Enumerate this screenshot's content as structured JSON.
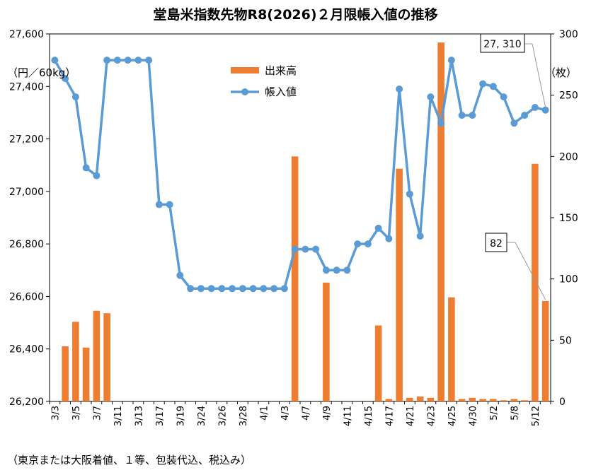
{
  "chart_data": {
    "type": "bar+line",
    "title": "堂島米指数先物R8(2026)２月限帳入値の推移",
    "left_unit": "（円／60kg）",
    "right_unit": "（枚）",
    "footnote": "（東京または大阪着値、１等、包装代込、税込み）",
    "y_left": {
      "min": 26200,
      "max": 27600,
      "ticks": [
        "26,200",
        "26,400",
        "26,600",
        "26,800",
        "27,000",
        "27,200",
        "27,400",
        "27,600"
      ],
      "tick_values": [
        26200,
        26400,
        26600,
        26800,
        27000,
        27200,
        27400,
        27600
      ]
    },
    "y_right": {
      "min": 0,
      "max": 300,
      "ticks": [
        "0",
        "50",
        "100",
        "150",
        "200",
        "250",
        "300"
      ],
      "tick_values": [
        0,
        50,
        100,
        150,
        200,
        250,
        300
      ]
    },
    "x_tick_labels": [
      "3/3",
      "3/5",
      "3/7",
      "3/11",
      "3/13",
      "3/17",
      "3/19",
      "3/24",
      "3/26",
      "3/28",
      "4/1",
      "4/3",
      "4/7",
      "4/9",
      "4/11",
      "4/15",
      "4/17",
      "4/21",
      "4/23",
      "4/25",
      "4/30",
      "5/2",
      "5/8",
      "5/12"
    ],
    "x_tick_label_every": 2,
    "categories": [
      "3/3",
      "3/4",
      "3/5",
      "3/6",
      "3/7",
      "3/10",
      "3/11",
      "3/12",
      "3/13",
      "3/16",
      "3/17",
      "3/18",
      "3/19",
      "3/23",
      "3/24",
      "3/25",
      "3/26",
      "3/27",
      "3/28",
      "3/31",
      "4/1",
      "4/2",
      "4/3",
      "4/6",
      "4/7",
      "4/8",
      "4/9",
      "4/10",
      "4/11",
      "4/14",
      "4/15",
      "4/16",
      "4/17",
      "4/18",
      "4/21",
      "4/22",
      "4/23",
      "4/24",
      "4/25",
      "4/28",
      "4/30",
      "5/1",
      "5/2",
      "5/7",
      "5/8",
      "5/11",
      "5/12",
      "5/13"
    ],
    "series": [
      {
        "name": "出来高",
        "type": "bar",
        "axis": "right",
        "color": "#ED7D31",
        "values": [
          0,
          45,
          65,
          44,
          74,
          72,
          0,
          0,
          0,
          0,
          0,
          0,
          0,
          0,
          0,
          0,
          0,
          0,
          0,
          0,
          0,
          0,
          0,
          200,
          0,
          0,
          97,
          0,
          0,
          0,
          0,
          62,
          2,
          190,
          3,
          4,
          3,
          293,
          85,
          2,
          3,
          2,
          2,
          1,
          2,
          1,
          194,
          82
        ]
      },
      {
        "name": "帳入値",
        "type": "line",
        "axis": "left",
        "color": "#5B9BD5",
        "values": [
          27500,
          27430,
          27360,
          27090,
          27060,
          27500,
          27500,
          27500,
          27500,
          27500,
          26950,
          26950,
          26680,
          26630,
          26630,
          26630,
          26630,
          26630,
          26630,
          26630,
          26630,
          26630,
          26630,
          26780,
          26780,
          26780,
          26700,
          26700,
          26700,
          26800,
          26800,
          26860,
          26820,
          27390,
          26990,
          26830,
          27360,
          27260,
          27500,
          27290,
          27290,
          27410,
          27400,
          27360,
          27260,
          27290,
          27320,
          27310
        ]
      }
    ],
    "legend": {
      "position": "top-center",
      "entries": [
        "出来高",
        "帳入値"
      ]
    },
    "annotations": [
      {
        "text": "27, 310",
        "series": "帳入値",
        "index": 47
      },
      {
        "text": "82",
        "series": "出来高",
        "index": 47
      }
    ],
    "grid": false
  }
}
